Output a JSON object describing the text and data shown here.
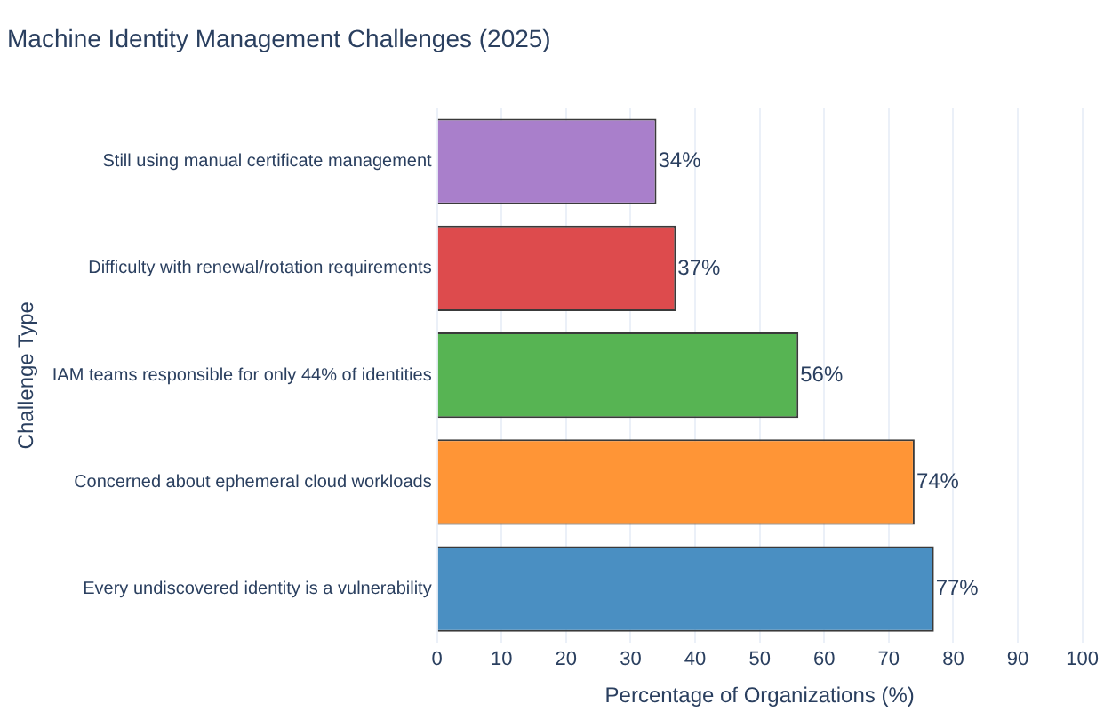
{
  "chart_data": {
    "type": "bar",
    "orientation": "horizontal",
    "title": "Machine Identity Management Challenges (2025)",
    "xlabel": "Percentage of Organizations (%)",
    "ylabel": "Challenge Type",
    "categories": [
      "Still using manual certificate management",
      "Difficulty with renewal/rotation requirements",
      "IAM teams responsible for only 44% of identities",
      "Concerned about ephemeral cloud workloads",
      "Every undiscovered identity is a vulnerability"
    ],
    "values": [
      34,
      37,
      56,
      74,
      77
    ],
    "colors": [
      "#a97fcb",
      "#dd4b4d",
      "#57b453",
      "#ff9536",
      "#4a8fc2"
    ],
    "value_labels": [
      "34%",
      "37%",
      "56%",
      "74%",
      "77%"
    ],
    "xlim": [
      0,
      100
    ],
    "xticks": [
      0,
      10,
      20,
      30,
      40,
      50,
      60,
      70,
      80,
      90,
      100
    ],
    "grid": "x",
    "legend": false
  }
}
